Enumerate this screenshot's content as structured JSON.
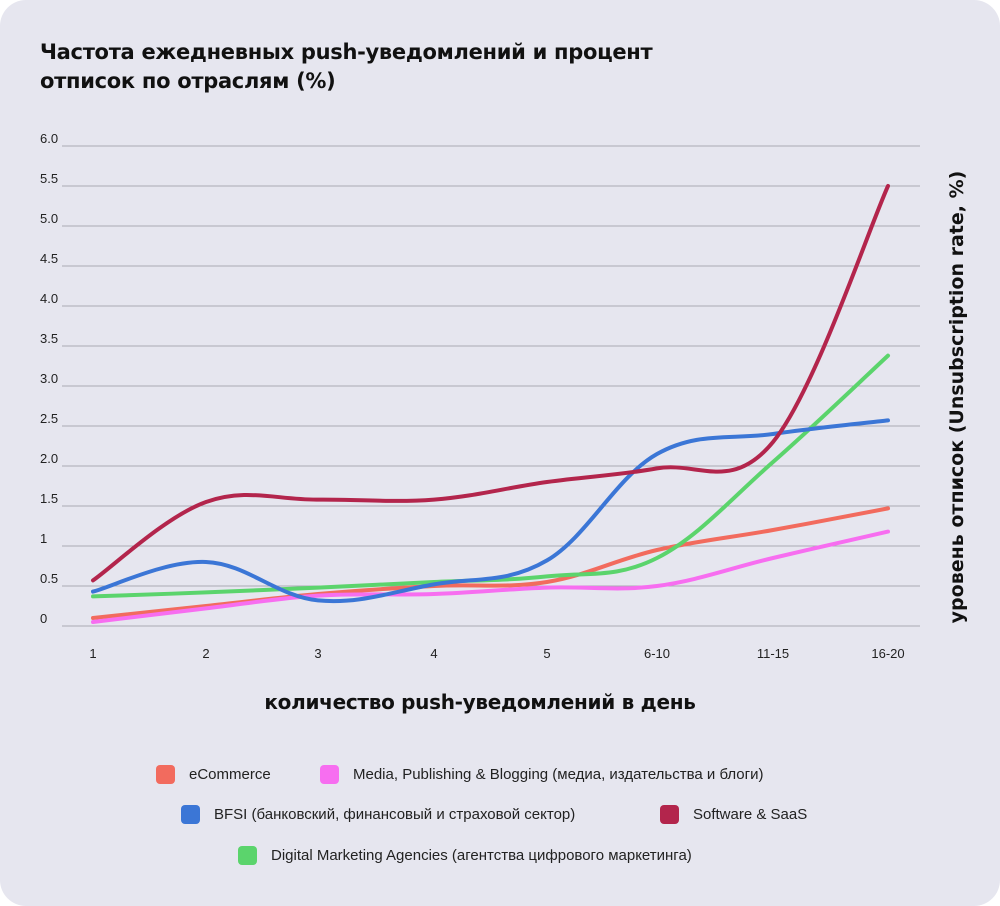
{
  "chart_data": {
    "type": "line",
    "title": "Частота ежедневных push-уведомлений и процент отписок по отраслям (%)",
    "xlabel": "количество push-уведомлений в день",
    "ylabel": "уровень отписок (Unsubscription rate, %)",
    "categories": [
      "1",
      "2",
      "3",
      "4",
      "5",
      "6-10",
      "11-15",
      "16-20"
    ],
    "y_ticks": [
      "0",
      "0.5",
      "1",
      "1.5",
      "2.0",
      "2.5",
      "3.0",
      "3.5",
      "4.0",
      "4.5",
      "5.0",
      "5.5",
      "6.0"
    ],
    "ylim": [
      0,
      6
    ],
    "grid": true,
    "legend_position": "bottom",
    "series": [
      {
        "name": "eCommerce",
        "color": "#f26b5e",
        "values": [
          0.1,
          0.25,
          0.4,
          0.5,
          0.55,
          0.95,
          1.2,
          1.47
        ]
      },
      {
        "name": "Media, Publishing & Blogging (медиа, издательства и блоги)",
        "color": "#f76ef0",
        "values": [
          0.05,
          0.22,
          0.38,
          0.4,
          0.48,
          0.5,
          0.85,
          1.18
        ]
      },
      {
        "name": "BFSI (банковский, финансовый и страховой сектор)",
        "color": "#3b76d6",
        "values": [
          0.43,
          0.8,
          0.32,
          0.52,
          0.82,
          2.15,
          2.4,
          2.57
        ]
      },
      {
        "name": "Software & SaaS",
        "color": "#b3254c",
        "values": [
          0.57,
          1.55,
          1.58,
          1.58,
          1.8,
          1.97,
          2.3,
          5.5
        ]
      },
      {
        "name": "Digital Marketing Agencies (агентства цифрового маркетинга)",
        "color": "#5bd46c",
        "values": [
          0.37,
          0.42,
          0.48,
          0.55,
          0.62,
          0.85,
          2.05,
          3.38
        ]
      }
    ]
  }
}
